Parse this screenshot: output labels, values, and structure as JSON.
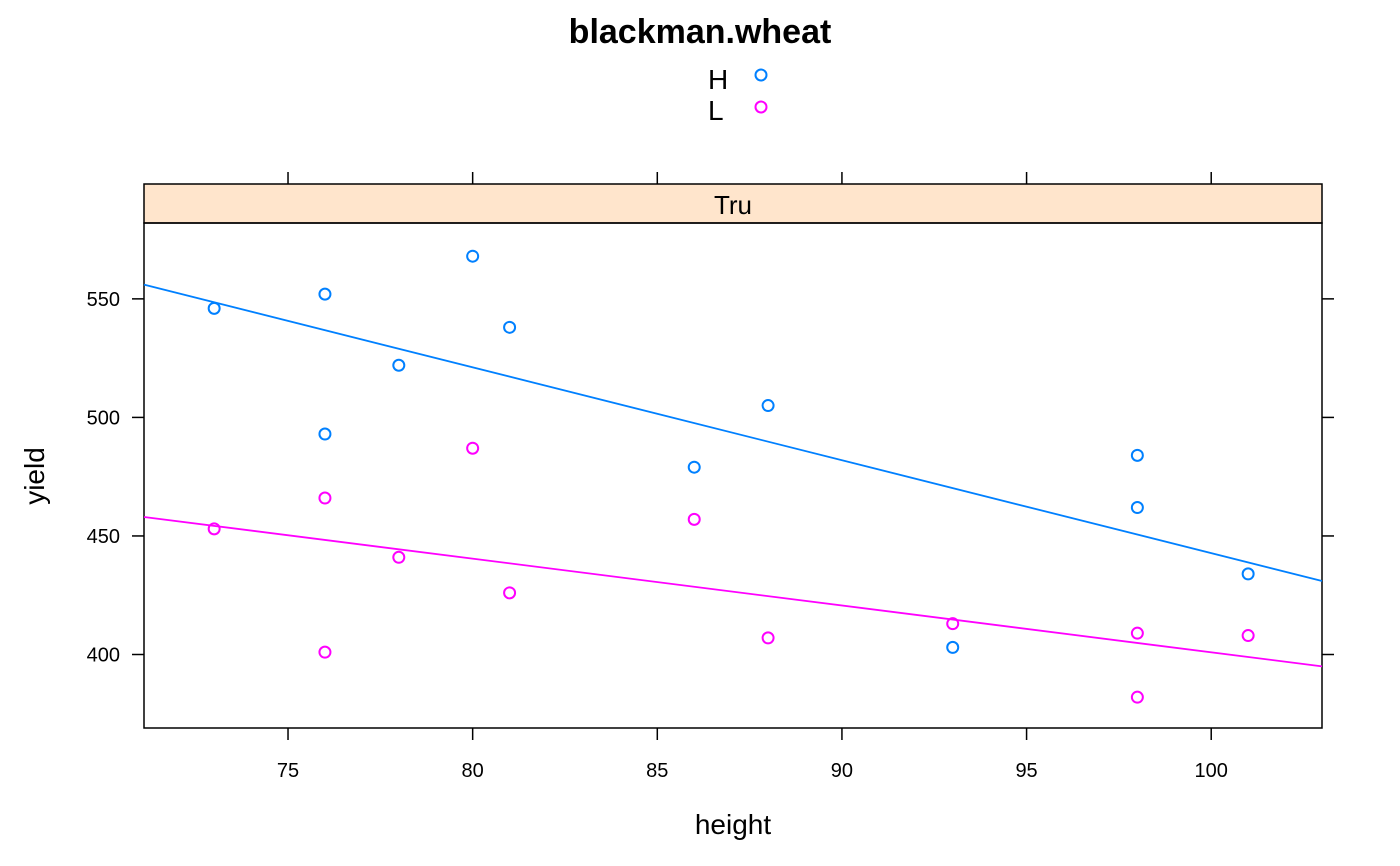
{
  "chart_data": {
    "type": "scatter",
    "title": "blackman.wheat",
    "xlabel": "height",
    "ylabel": "yield",
    "panel_strip": "Tru",
    "xlim": [
      71.1,
      103
    ],
    "ylim": [
      369,
      582
    ],
    "x_ticks": [
      75,
      80,
      85,
      90,
      95,
      100
    ],
    "y_ticks": [
      400,
      450,
      500,
      550
    ],
    "grid": false,
    "legend_position": "top-center",
    "colors": {
      "H": "#0080ff",
      "L": "#ff00ff",
      "strip": "#ffe5cc"
    },
    "series": [
      {
        "name": "H",
        "color": "#0080ff",
        "points": [
          [
            73,
            546
          ],
          [
            76,
            552
          ],
          [
            76,
            493
          ],
          [
            78,
            522
          ],
          [
            80,
            568
          ],
          [
            81,
            538
          ],
          [
            86,
            479
          ],
          [
            88,
            505
          ],
          [
            93,
            403
          ],
          [
            98,
            484
          ],
          [
            98,
            462
          ],
          [
            101,
            434
          ]
        ],
        "fit_line": {
          "x": [
            71.1,
            103
          ],
          "y": [
            556,
            431
          ]
        }
      },
      {
        "name": "L",
        "color": "#ff00ff",
        "points": [
          [
            73,
            453
          ],
          [
            76,
            466
          ],
          [
            76,
            401
          ],
          [
            78,
            441
          ],
          [
            80,
            487
          ],
          [
            81,
            426
          ],
          [
            86,
            457
          ],
          [
            88,
            407
          ],
          [
            93,
            413
          ],
          [
            98,
            409
          ],
          [
            98,
            382
          ],
          [
            101,
            408
          ]
        ],
        "fit_line": {
          "x": [
            71.1,
            103
          ],
          "y": [
            458,
            395
          ]
        }
      }
    ]
  }
}
